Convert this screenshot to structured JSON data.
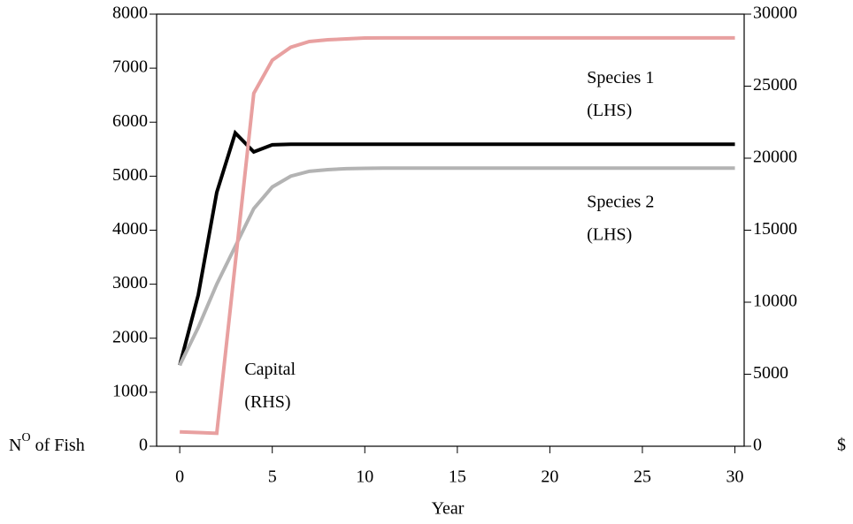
{
  "chart_data": {
    "type": "line",
    "xlabel": "Year",
    "ylabel_parts": [
      "N",
      "O",
      " of Fish"
    ],
    "y2label": "$",
    "x": [
      0,
      1,
      2,
      3,
      4,
      5,
      6,
      7,
      8,
      9,
      10,
      11,
      12,
      13,
      14,
      15,
      16,
      17,
      18,
      19,
      20,
      21,
      22,
      23,
      24,
      25,
      26,
      27,
      28,
      29,
      30
    ],
    "series": [
      {
        "name": "Species 1",
        "color": "#000000",
        "axis": "y",
        "values": [
          1500,
          2800,
          4700,
          5800,
          5450,
          5580,
          5590,
          5590,
          5590,
          5590,
          5590,
          5590,
          5590,
          5590,
          5590,
          5590,
          5590,
          5590,
          5590,
          5590,
          5590,
          5590,
          5590,
          5590,
          5590,
          5590,
          5590,
          5590,
          5590,
          5590,
          5590
        ]
      },
      {
        "name": "Species 2",
        "color": "#b3b3b3",
        "axis": "y",
        "values": [
          1500,
          2200,
          3000,
          3700,
          4400,
          4800,
          5000,
          5090,
          5120,
          5140,
          5145,
          5150,
          5150,
          5150,
          5150,
          5150,
          5150,
          5150,
          5150,
          5150,
          5150,
          5150,
          5150,
          5150,
          5150,
          5150,
          5150,
          5150,
          5150,
          5150,
          5150
        ]
      },
      {
        "name": "Capital",
        "color": "#e8a0a0",
        "axis": "y2",
        "values": [
          1000,
          950,
          900,
          12700,
          24500,
          26800,
          27700,
          28100,
          28220,
          28280,
          28340,
          28350,
          28350,
          28350,
          28350,
          28350,
          28350,
          28350,
          28350,
          28350,
          28350,
          28350,
          28350,
          28350,
          28350,
          28350,
          28350,
          28350,
          28350,
          28350,
          28350
        ]
      }
    ],
    "annotations": [
      {
        "lines": [
          "Species 1",
          "(LHS)"
        ],
        "x": 22,
        "y": 6800
      },
      {
        "lines": [
          "Species 2",
          "(LHS)"
        ],
        "x": 22,
        "y": 4500
      },
      {
        "lines": [
          "Capital",
          "(RHS)"
        ],
        "x": 3.5,
        "y": 1400
      }
    ],
    "xlim": [
      -1.25,
      30.5
    ],
    "xticks": [
      0,
      5,
      10,
      15,
      20,
      25,
      30
    ],
    "ylim": [
      0,
      8000
    ],
    "yticks": [
      0,
      1000,
      2000,
      3000,
      4000,
      5000,
      6000,
      7000,
      8000
    ],
    "y2lim": [
      0,
      30000
    ],
    "y2ticks": [
      0,
      5000,
      10000,
      15000,
      20000,
      25000,
      30000
    ]
  }
}
